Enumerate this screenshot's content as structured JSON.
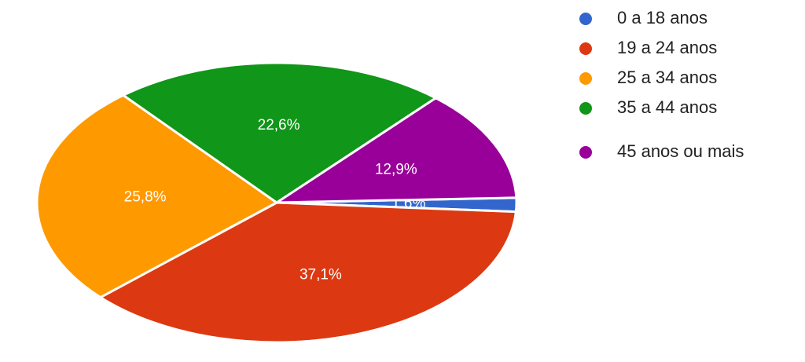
{
  "chart_data": {
    "type": "pie",
    "categories": [
      "0 a 18 anos",
      "19 a 24 anos",
      "25 a 34 anos",
      "35 a 44 anos",
      "45 anos ou mais"
    ],
    "values": [
      1.6,
      37.1,
      25.8,
      22.6,
      12.9
    ],
    "value_labels": [
      "1,6%",
      "37,1%",
      "25,8%",
      "22,6%",
      "12,9%"
    ],
    "colors": [
      "#3366cc",
      "#dc3912",
      "#ff9900",
      "#109618",
      "#990099"
    ]
  }
}
